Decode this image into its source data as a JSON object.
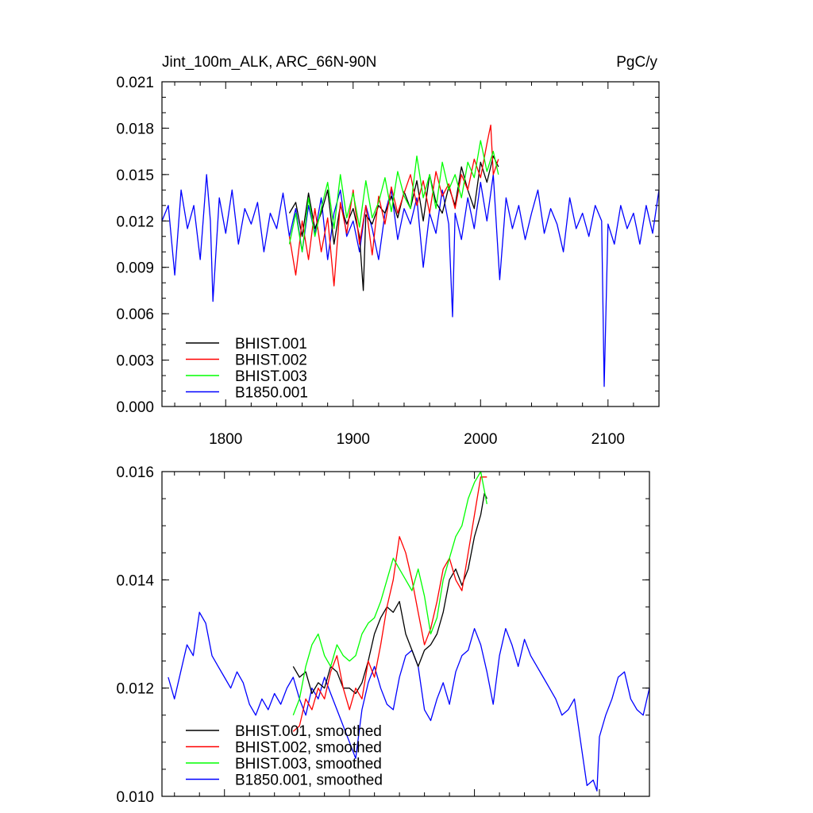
{
  "chart_data": [
    {
      "type": "line",
      "title": "Jint_100m_ALK, ARC_66N-90N",
      "units": "PgC/y",
      "xlim": [
        1750,
        2140
      ],
      "ylim": [
        0.0,
        0.021
      ],
      "x_ticks": [
        "1800",
        "1900",
        "2000",
        "2100"
      ],
      "y_ticks": [
        "0.000",
        "0.003",
        "0.006",
        "0.009",
        "0.012",
        "0.015",
        "0.018",
        "0.021"
      ],
      "legend_position": "bottom-left",
      "series": [
        {
          "name": "BHIST.001",
          "color": "#000000",
          "x": [
            1850,
            1855,
            1860,
            1865,
            1870,
            1875,
            1880,
            1885,
            1890,
            1895,
            1900,
            1905,
            1908,
            1910,
            1915,
            1920,
            1925,
            1930,
            1935,
            1940,
            1945,
            1950,
            1955,
            1960,
            1965,
            1970,
            1975,
            1980,
            1985,
            1990,
            1995,
            2000,
            2005,
            2010,
            2014
          ],
          "values": [
            0.0125,
            0.0132,
            0.011,
            0.0138,
            0.0115,
            0.0125,
            0.014,
            0.0105,
            0.013,
            0.0118,
            0.0128,
            0.011,
            0.0075,
            0.0124,
            0.0118,
            0.013,
            0.0125,
            0.0136,
            0.0122,
            0.0139,
            0.0128,
            0.0146,
            0.012,
            0.015,
            0.0132,
            0.0125,
            0.0142,
            0.013,
            0.0155,
            0.014,
            0.0128,
            0.0158,
            0.0145,
            0.0162,
            0.0155
          ]
        },
        {
          "name": "BHIST.002",
          "color": "#ff0000",
          "x": [
            1850,
            1855,
            1860,
            1865,
            1870,
            1875,
            1880,
            1885,
            1890,
            1895,
            1900,
            1905,
            1910,
            1915,
            1920,
            1925,
            1930,
            1935,
            1940,
            1945,
            1950,
            1955,
            1960,
            1965,
            1970,
            1975,
            1980,
            1985,
            1990,
            1995,
            2000,
            2005,
            2008,
            2010,
            2014
          ],
          "values": [
            0.011,
            0.0085,
            0.012,
            0.0095,
            0.0128,
            0.01,
            0.0122,
            0.0078,
            0.0132,
            0.0112,
            0.014,
            0.0105,
            0.013,
            0.0098,
            0.0136,
            0.0118,
            0.0142,
            0.0125,
            0.0138,
            0.015,
            0.013,
            0.0146,
            0.0125,
            0.0152,
            0.0136,
            0.0144,
            0.0128,
            0.015,
            0.014,
            0.016,
            0.0148,
            0.017,
            0.0182,
            0.015,
            0.016
          ]
        },
        {
          "name": "BHIST.003",
          "color": "#00ff00",
          "x": [
            1850,
            1855,
            1860,
            1865,
            1870,
            1875,
            1880,
            1885,
            1890,
            1895,
            1900,
            1905,
            1910,
            1915,
            1920,
            1925,
            1930,
            1935,
            1940,
            1945,
            1950,
            1955,
            1960,
            1965,
            1970,
            1975,
            1980,
            1985,
            1990,
            1995,
            2000,
            2005,
            2010,
            2014
          ],
          "values": [
            0.0105,
            0.0125,
            0.01,
            0.0135,
            0.011,
            0.0128,
            0.0145,
            0.0115,
            0.015,
            0.0122,
            0.0138,
            0.0116,
            0.0146,
            0.0122,
            0.0132,
            0.0148,
            0.0126,
            0.0152,
            0.0136,
            0.0128,
            0.0162,
            0.0135,
            0.015,
            0.0128,
            0.0158,
            0.014,
            0.015,
            0.0135,
            0.0158,
            0.0148,
            0.0172,
            0.0152,
            0.0165,
            0.015
          ]
        },
        {
          "name": "B1850.001",
          "color": "#0000ff",
          "x": [
            1750,
            1755,
            1760,
            1765,
            1770,
            1775,
            1780,
            1785,
            1788,
            1790,
            1795,
            1800,
            1805,
            1810,
            1815,
            1820,
            1825,
            1830,
            1835,
            1840,
            1845,
            1850,
            1855,
            1860,
            1865,
            1870,
            1875,
            1880,
            1885,
            1890,
            1895,
            1900,
            1905,
            1910,
            1915,
            1920,
            1925,
            1930,
            1935,
            1940,
            1945,
            1950,
            1955,
            1960,
            1965,
            1970,
            1975,
            1978,
            1980,
            1985,
            1990,
            1995,
            2000,
            2005,
            2010,
            2015,
            2020,
            2025,
            2030,
            2035,
            2040,
            2045,
            2050,
            2055,
            2060,
            2065,
            2070,
            2075,
            2080,
            2085,
            2090,
            2095,
            2097,
            2100,
            2105,
            2110,
            2115,
            2120,
            2125,
            2130,
            2135,
            2140
          ],
          "values": [
            0.012,
            0.013,
            0.0085,
            0.014,
            0.0115,
            0.013,
            0.0095,
            0.015,
            0.012,
            0.0068,
            0.0135,
            0.0112,
            0.014,
            0.0105,
            0.0128,
            0.0118,
            0.0132,
            0.01,
            0.0125,
            0.0115,
            0.0138,
            0.011,
            0.0128,
            0.01,
            0.013,
            0.0112,
            0.0135,
            0.0095,
            0.0125,
            0.014,
            0.011,
            0.012,
            0.01,
            0.013,
            0.0115,
            0.0095,
            0.0125,
            0.014,
            0.0108,
            0.0128,
            0.0118,
            0.0135,
            0.009,
            0.0125,
            0.0112,
            0.014,
            0.0118,
            0.0058,
            0.0125,
            0.0108,
            0.0135,
            0.0115,
            0.0145,
            0.012,
            0.015,
            0.0082,
            0.0135,
            0.0115,
            0.013,
            0.0108,
            0.0125,
            0.014,
            0.0112,
            0.0128,
            0.0118,
            0.01,
            0.0135,
            0.0115,
            0.0125,
            0.011,
            0.013,
            0.012,
            0.0013,
            0.0118,
            0.0105,
            0.013,
            0.0115,
            0.0125,
            0.0105,
            0.013,
            0.0112,
            0.014
          ]
        }
      ]
    },
    {
      "type": "line",
      "xlim": [
        1750,
        2140
      ],
      "ylim": [
        0.01,
        0.016
      ],
      "y_ticks": [
        "0.010",
        "0.012",
        "0.014",
        "0.016"
      ],
      "legend_position": "bottom-left",
      "series": [
        {
          "name": "BHIST.001, smoothed",
          "color": "#000000",
          "x": [
            1855,
            1860,
            1865,
            1870,
            1875,
            1880,
            1885,
            1890,
            1895,
            1900,
            1905,
            1910,
            1915,
            1920,
            1925,
            1930,
            1935,
            1940,
            1945,
            1950,
            1955,
            1960,
            1965,
            1970,
            1975,
            1980,
            1985,
            1990,
            1995,
            2000,
            2005,
            2008,
            2010
          ],
          "values": [
            0.0124,
            0.0122,
            0.0123,
            0.0119,
            0.0121,
            0.012,
            0.0124,
            0.0123,
            0.012,
            0.012,
            0.0119,
            0.0121,
            0.0125,
            0.013,
            0.0133,
            0.0135,
            0.0134,
            0.0136,
            0.013,
            0.0127,
            0.0124,
            0.0127,
            0.0128,
            0.013,
            0.0134,
            0.014,
            0.0142,
            0.0139,
            0.0142,
            0.0148,
            0.0152,
            0.0156,
            0.0155
          ]
        },
        {
          "name": "BHIST.002, smoothed",
          "color": "#ff0000",
          "x": [
            1855,
            1860,
            1865,
            1870,
            1875,
            1880,
            1885,
            1890,
            1895,
            1900,
            1905,
            1910,
            1915,
            1920,
            1925,
            1930,
            1935,
            1940,
            1945,
            1950,
            1955,
            1960,
            1965,
            1970,
            1975,
            1980,
            1985,
            1990,
            1995,
            2000,
            2005,
            2010
          ],
          "values": [
            0.0112,
            0.0113,
            0.0118,
            0.0116,
            0.012,
            0.0118,
            0.0123,
            0.0126,
            0.012,
            0.0116,
            0.012,
            0.0118,
            0.0125,
            0.0122,
            0.0128,
            0.0135,
            0.014,
            0.0148,
            0.0145,
            0.014,
            0.0134,
            0.0128,
            0.0131,
            0.0136,
            0.0142,
            0.0144,
            0.014,
            0.0138,
            0.0145,
            0.0152,
            0.0159,
            0.0159
          ]
        },
        {
          "name": "BHIST.003, smoothed",
          "color": "#00ff00",
          "x": [
            1855,
            1860,
            1865,
            1870,
            1875,
            1880,
            1885,
            1890,
            1895,
            1900,
            1905,
            1910,
            1915,
            1920,
            1925,
            1930,
            1935,
            1940,
            1945,
            1950,
            1955,
            1960,
            1965,
            1970,
            1975,
            1980,
            1985,
            1990,
            1995,
            2000,
            2005,
            2010
          ],
          "values": [
            0.0115,
            0.0118,
            0.0124,
            0.0128,
            0.013,
            0.0126,
            0.0124,
            0.0128,
            0.0126,
            0.0125,
            0.0126,
            0.013,
            0.0132,
            0.0133,
            0.0136,
            0.014,
            0.0144,
            0.0142,
            0.014,
            0.0138,
            0.0142,
            0.0137,
            0.013,
            0.0133,
            0.014,
            0.0144,
            0.0148,
            0.015,
            0.0155,
            0.0158,
            0.016,
            0.0154
          ]
        },
        {
          "name": "B1850.001, smoothed",
          "color": "#0000ff",
          "x": [
            1755,
            1760,
            1765,
            1770,
            1775,
            1780,
            1785,
            1790,
            1795,
            1800,
            1805,
            1810,
            1815,
            1820,
            1825,
            1830,
            1835,
            1840,
            1845,
            1850,
            1855,
            1860,
            1865,
            1870,
            1875,
            1880,
            1885,
            1890,
            1895,
            1900,
            1905,
            1910,
            1915,
            1920,
            1925,
            1930,
            1935,
            1940,
            1945,
            1950,
            1955,
            1960,
            1965,
            1970,
            1975,
            1980,
            1985,
            1990,
            1995,
            2000,
            2005,
            2010,
            2015,
            2020,
            2025,
            2030,
            2035,
            2040,
            2045,
            2050,
            2055,
            2060,
            2065,
            2070,
            2075,
            2080,
            2085,
            2090,
            2095,
            2098,
            2100,
            2105,
            2110,
            2115,
            2120,
            2125,
            2130,
            2135,
            2140
          ],
          "values": [
            0.0122,
            0.0118,
            0.0123,
            0.0128,
            0.0126,
            0.0134,
            0.0132,
            0.0126,
            0.0124,
            0.0122,
            0.012,
            0.0123,
            0.0121,
            0.0117,
            0.0115,
            0.0118,
            0.0116,
            0.0119,
            0.0117,
            0.012,
            0.0122,
            0.0118,
            0.0115,
            0.012,
            0.0118,
            0.0122,
            0.0119,
            0.0116,
            0.0113,
            0.011,
            0.0107,
            0.0116,
            0.0121,
            0.0124,
            0.012,
            0.0117,
            0.0116,
            0.0122,
            0.0126,
            0.0127,
            0.0124,
            0.0116,
            0.0114,
            0.0118,
            0.0121,
            0.0117,
            0.0123,
            0.0126,
            0.0127,
            0.0131,
            0.0128,
            0.0123,
            0.0117,
            0.0126,
            0.0131,
            0.0128,
            0.0124,
            0.0129,
            0.0126,
            0.0124,
            0.0122,
            0.012,
            0.0118,
            0.0115,
            0.0116,
            0.0118,
            0.011,
            0.0102,
            0.0103,
            0.0101,
            0.0111,
            0.0115,
            0.0118,
            0.0122,
            0.0123,
            0.0118,
            0.0116,
            0.0115,
            0.012
          ]
        }
      ]
    }
  ]
}
